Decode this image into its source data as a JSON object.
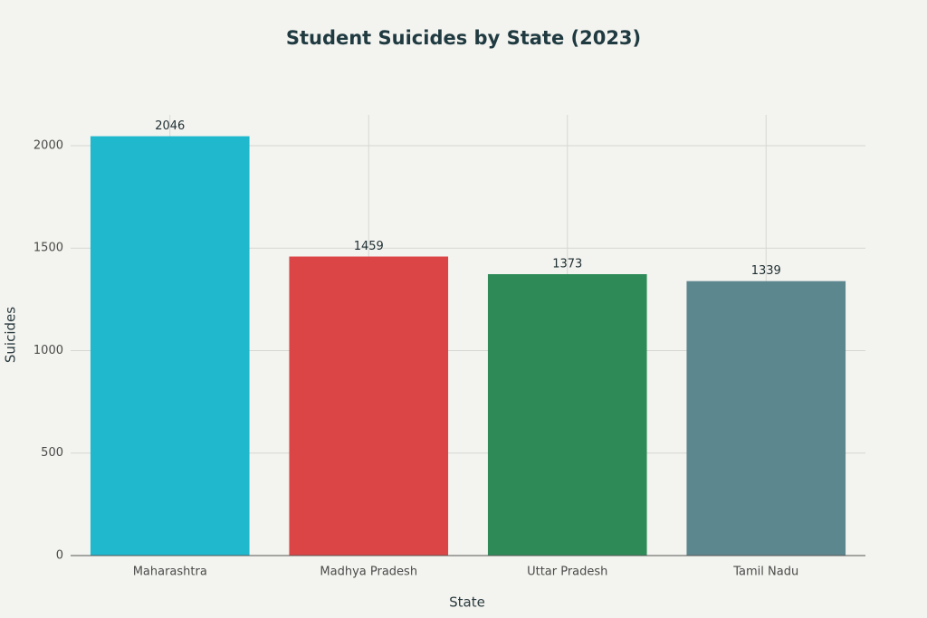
{
  "chart_data": {
    "type": "bar",
    "title": "Student Suicides by State (2023)",
    "x_label": "State",
    "y_label": "Suicides",
    "categories": [
      "Maharashtra",
      "Madhya Pradesh",
      "Uttar Pradesh",
      "Tamil Nadu"
    ],
    "values": [
      2046,
      1459,
      1373,
      1339
    ],
    "colors": [
      "#1fb8cd",
      "#db4545",
      "#2e8b57",
      "#5d878f"
    ],
    "ylim": [
      0,
      2150
    ],
    "yticks": [
      0,
      500,
      1000,
      1500,
      2000
    ],
    "grid": true
  }
}
